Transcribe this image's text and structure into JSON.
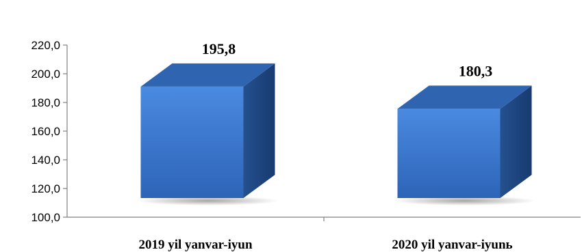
{
  "chart_data": {
    "type": "bar",
    "style": "3d-column",
    "categories": [
      "2019 yil yanvar-iyun",
      "2020 yil yanvar-iyunь"
    ],
    "values": [
      195.8,
      180.3
    ],
    "value_labels": [
      "195,8",
      "180,3"
    ],
    "title": "",
    "xlabel": "",
    "ylabel": "",
    "ylim": [
      100,
      220
    ],
    "yticks": [
      100,
      120,
      140,
      160,
      180,
      200,
      220
    ],
    "ytick_labels": [
      "100,0",
      "120,0",
      "140,0",
      "160,0",
      "180,0",
      "200,0",
      "220,0"
    ],
    "grid": false,
    "legend": "none",
    "colors": {
      "front_top": "#4a8ae0",
      "front_bottom": "#2d64b8",
      "top_face": "#2f64b0",
      "side_face": "#1e4380",
      "axis": "#808080"
    }
  }
}
